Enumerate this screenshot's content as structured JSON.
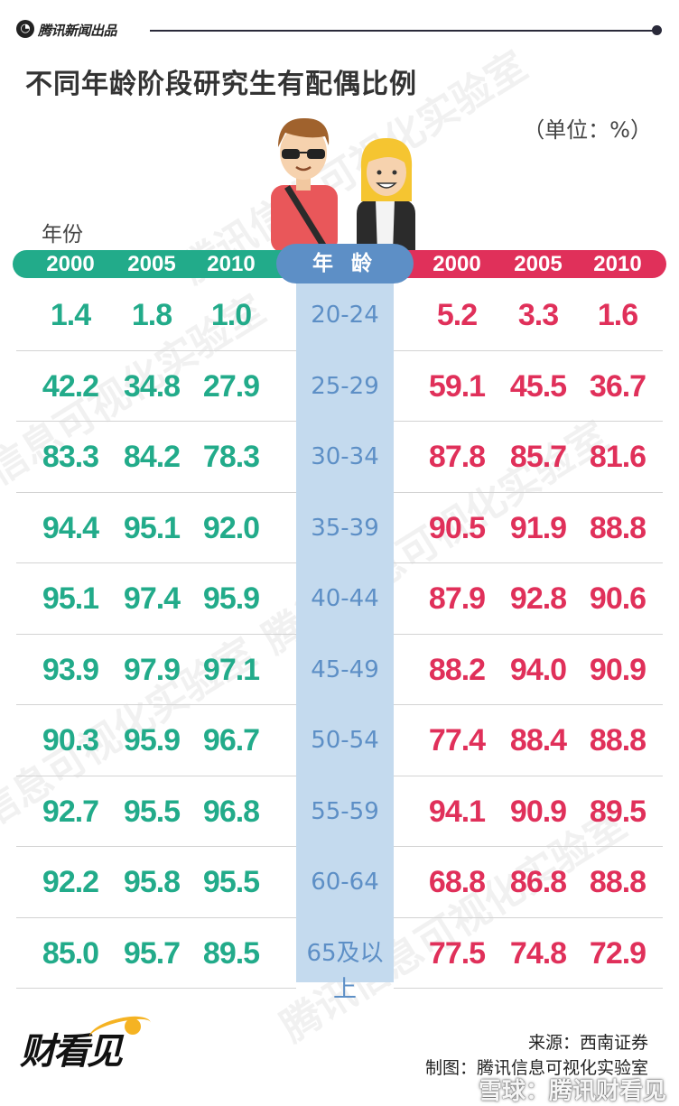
{
  "brand": {
    "name": "腾讯新闻出品"
  },
  "title": "不同年龄阶段研究生有配偶比例",
  "unit": "（单位：%）",
  "year_label": "年份",
  "watermark_text": "腾讯信息可视化实验室",
  "colors": {
    "green": "#22ab8a",
    "red": "#e0305a",
    "blue": "#5d8fc6",
    "age_bg": "#c4daee"
  },
  "chart_data": {
    "type": "table",
    "header": {
      "age_label": "年 龄",
      "left_years": [
        "2000",
        "2005",
        "2010"
      ],
      "right_years": [
        "2000",
        "2005",
        "2010"
      ]
    },
    "rows": [
      {
        "age": "20-24",
        "left": [
          "1.4",
          "1.8",
          "1.0"
        ],
        "right": [
          "5.2",
          "3.3",
          "1.6"
        ]
      },
      {
        "age": "25-29",
        "left": [
          "42.2",
          "34.8",
          "27.9"
        ],
        "right": [
          "59.1",
          "45.5",
          "36.7"
        ]
      },
      {
        "age": "30-34",
        "left": [
          "83.3",
          "84.2",
          "78.3"
        ],
        "right": [
          "87.8",
          "85.7",
          "81.6"
        ]
      },
      {
        "age": "35-39",
        "left": [
          "94.4",
          "95.1",
          "92.0"
        ],
        "right": [
          "90.5",
          "91.9",
          "88.8"
        ]
      },
      {
        "age": "40-44",
        "left": [
          "95.1",
          "97.4",
          "95.9"
        ],
        "right": [
          "87.9",
          "92.8",
          "90.6"
        ]
      },
      {
        "age": "45-49",
        "left": [
          "93.9",
          "97.9",
          "97.1"
        ],
        "right": [
          "88.2",
          "94.0",
          "90.9"
        ]
      },
      {
        "age": "50-54",
        "left": [
          "90.3",
          "95.9",
          "96.7"
        ],
        "right": [
          "77.4",
          "88.4",
          "88.8"
        ]
      },
      {
        "age": "55-59",
        "left": [
          "92.7",
          "95.5",
          "96.8"
        ],
        "right": [
          "94.1",
          "90.9",
          "89.5"
        ]
      },
      {
        "age": "60-64",
        "left": [
          "92.2",
          "95.8",
          "95.5"
        ],
        "right": [
          "68.8",
          "86.8",
          "88.8"
        ]
      },
      {
        "age": "65及以上",
        "left": [
          "85.0",
          "95.7",
          "89.5"
        ],
        "right": [
          "77.5",
          "74.8",
          "72.9"
        ]
      }
    ]
  },
  "footer": {
    "logo": "财看见",
    "source": "来源：西南证券",
    "credit": "制图：腾讯信息可视化实验室",
    "platform_watermark": "雪球：腾讯财看见"
  }
}
